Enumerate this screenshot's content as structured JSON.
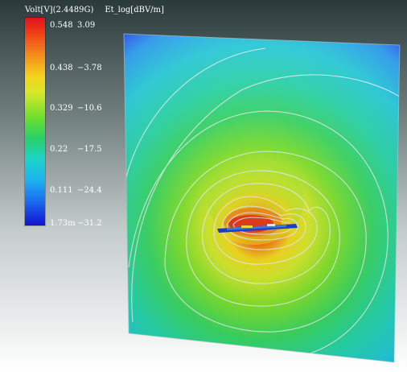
{
  "legend": {
    "header_volt": "Volt[V](2.4489G)",
    "header_field": "Et_log[dBV/m]",
    "rows": [
      {
        "volt": "0.548",
        "field": "3.09"
      },
      {
        "volt": "0.438",
        "field": "−3.78"
      },
      {
        "volt": "0.329",
        "field": "−10.6"
      },
      {
        "volt": "0.22",
        "field": "−17.5"
      },
      {
        "volt": "0.111",
        "field": "−24.4"
      },
      {
        "volt": "1.73m",
        "field": "−31.2"
      }
    ]
  },
  "colors": {
    "background_top": "#2a3a3a",
    "background_bottom": "#ffffff",
    "contour_line": "#e8eef0",
    "scale_max": "#e0101a",
    "scale_min": "#1212d0"
  }
}
